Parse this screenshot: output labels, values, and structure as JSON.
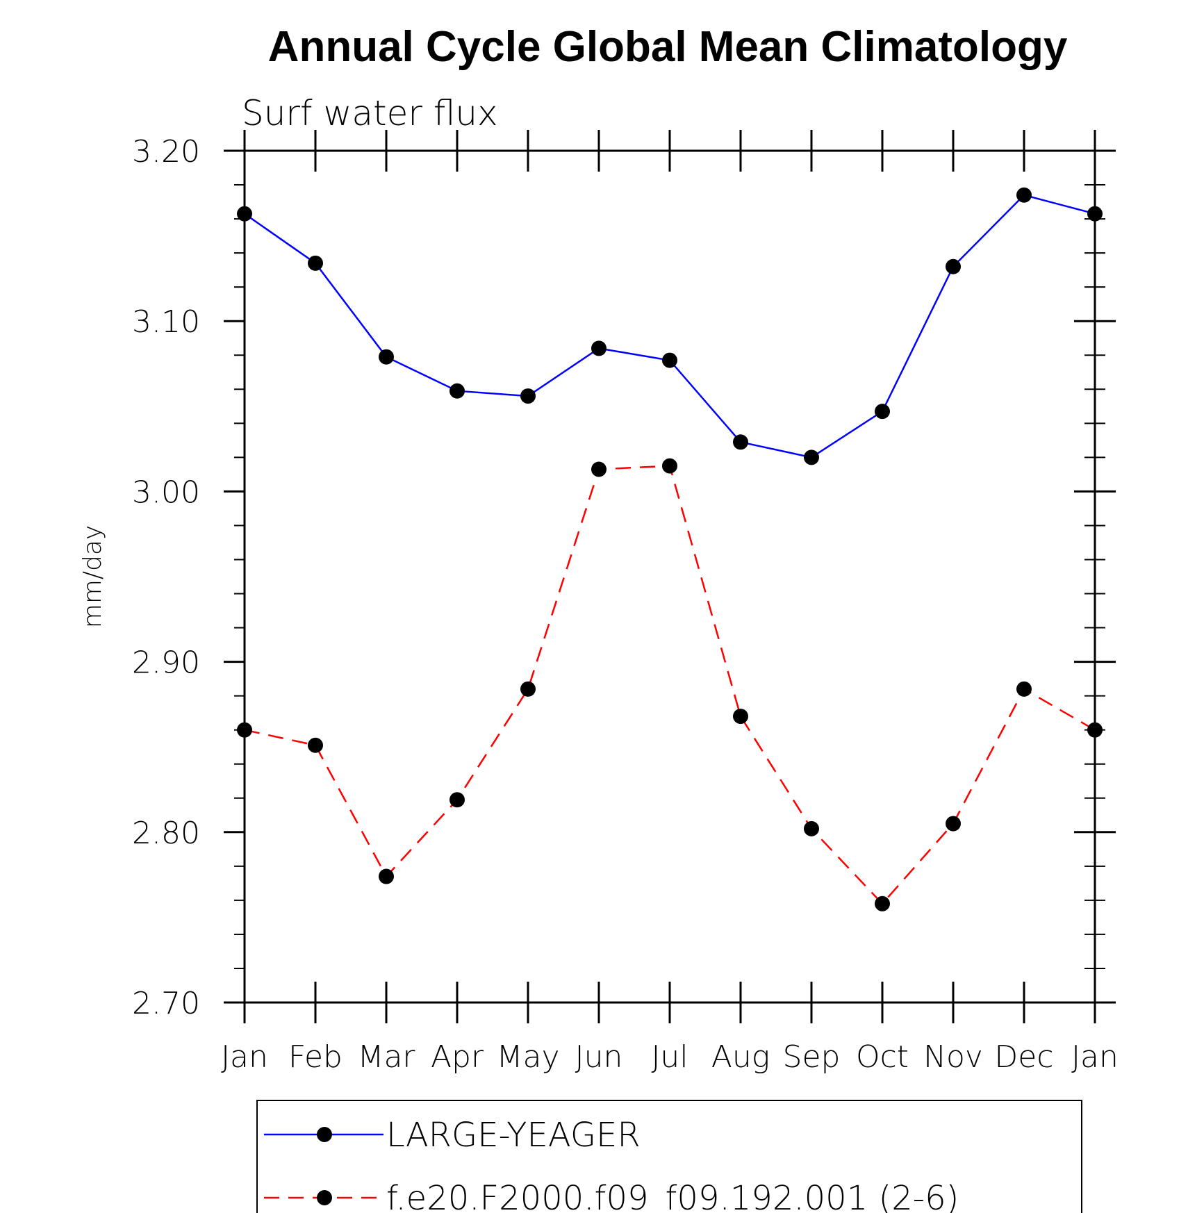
{
  "chart_data": {
    "type": "line",
    "title": "Annual Cycle Global Mean Climatology",
    "subtitle": "Surf water flux",
    "xlabel": "",
    "ylabel": "mm/day",
    "ylim": [
      2.7,
      3.2
    ],
    "ytick_labels": [
      "2.70",
      "2.80",
      "2.90",
      "3.00",
      "3.10",
      "3.20"
    ],
    "categories": [
      "Jan",
      "Feb",
      "Mar",
      "Apr",
      "May",
      "Jun",
      "Jul",
      "Aug",
      "Sep",
      "Oct",
      "Nov",
      "Dec",
      "Jan"
    ],
    "grid": false,
    "legend_position": "bottom",
    "series": [
      {
        "name": "LARGE-YEAGER",
        "color": "#0000ff",
        "line_style": "solid",
        "marker": "filled-circle",
        "values": [
          3.163,
          3.134,
          3.079,
          3.059,
          3.056,
          3.084,
          3.077,
          3.029,
          3.02,
          3.047,
          3.132,
          3.174,
          3.163
        ]
      },
      {
        "name": "f.e20.F2000.f09_f09.192.001 (2-6)",
        "color": "#ff0000",
        "line_style": "dashed",
        "marker": "filled-circle",
        "values": [
          2.86,
          2.851,
          2.774,
          2.819,
          2.884,
          3.013,
          3.015,
          2.868,
          2.802,
          2.758,
          2.805,
          2.884,
          2.86
        ]
      }
    ]
  }
}
